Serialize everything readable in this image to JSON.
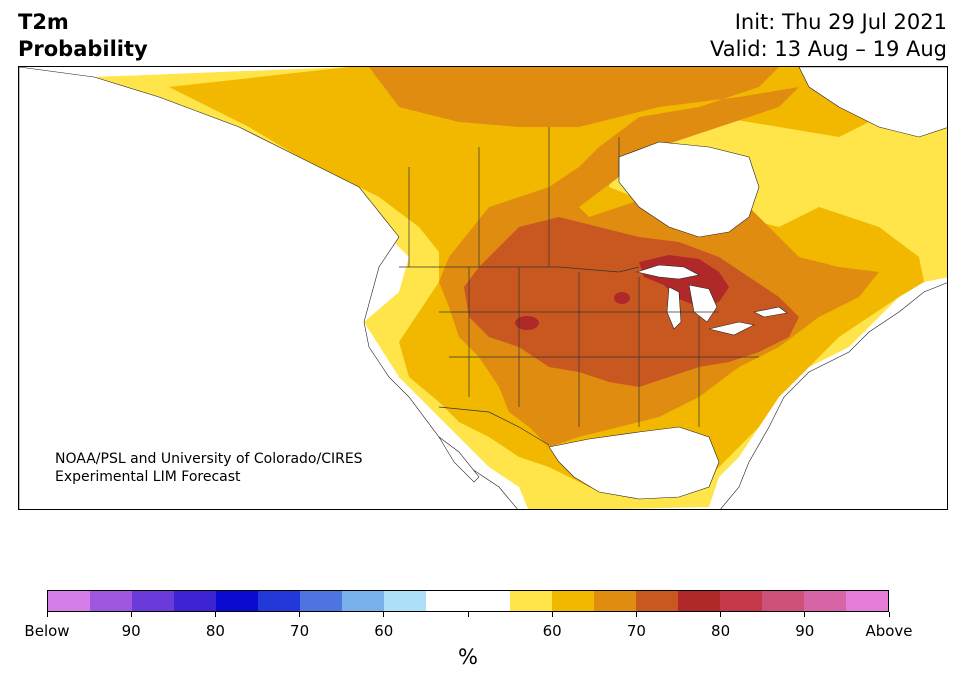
{
  "header": {
    "variable": "T2m",
    "product": "Probability",
    "init": "Init: Thu 29 Jul 2021",
    "valid": "Valid: 13 Aug – 19 Aug"
  },
  "credit": {
    "line1": "NOAA/PSL and University of Colorado/CIRES",
    "line2": "Experimental LIM Forecast"
  },
  "colorbar": {
    "colors": [
      "#d67ee8",
      "#9f57e0",
      "#6a3bda",
      "#3c23d4",
      "#0a0ad0",
      "#2238d8",
      "#4e74e0",
      "#78b0ec",
      "#ade0f8",
      "#ffffff",
      "#ffffff",
      "#ffe44a",
      "#f2b800",
      "#e08c10",
      "#c85820",
      "#b02828",
      "#c4384a",
      "#cc5078",
      "#d864a8",
      "#e47cd8"
    ],
    "tick_labels": [
      "Below",
      "90",
      "80",
      "70",
      "60",
      "",
      "60",
      "70",
      "80",
      "90",
      "Above"
    ],
    "unit": "%"
  },
  "map": {
    "legend_meaning": {
      "above_normal_colors": [
        "#ffe44a",
        "#f2b800",
        "#e08c10",
        "#c85820",
        "#b02828"
      ],
      "below_normal_colors": [
        "#ade0f8"
      ]
    }
  }
}
